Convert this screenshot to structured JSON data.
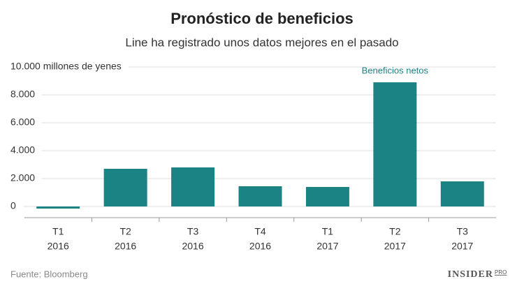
{
  "chart_data": {
    "type": "bar",
    "title": "Pronóstico de beneficios",
    "subtitle": "Line ha registrado unos datos mejores en el pasado",
    "source": "Fuente: Bloomberg",
    "brand": "INSIDER",
    "brand_suffix": "PRO",
    "categories": [
      [
        "T1",
        "2016"
      ],
      [
        "T2",
        "2016"
      ],
      [
        "T3",
        "2016"
      ],
      [
        "T4",
        "2016"
      ],
      [
        "T1",
        "2017"
      ],
      [
        "T2",
        "2017"
      ],
      [
        "T3",
        "2017"
      ]
    ],
    "series": [
      {
        "name": "Beneficios netos",
        "color": "#1c8385",
        "values": [
          -150,
          2700,
          2800,
          1450,
          1400,
          8900,
          1800
        ]
      }
    ],
    "ylim": [
      -800,
      10000
    ],
    "yticks": [
      0,
      {
        "value": 2000,
        "label": "2.000"
      },
      {
        "value": 4000,
        "label": "4.000"
      },
      {
        "value": 6000,
        "label": "6.000"
      },
      {
        "value": 8000,
        "label": "8.000"
      },
      {
        "value": 10000,
        "label": "10.000 millones de yenes"
      }
    ],
    "grid": true
  }
}
